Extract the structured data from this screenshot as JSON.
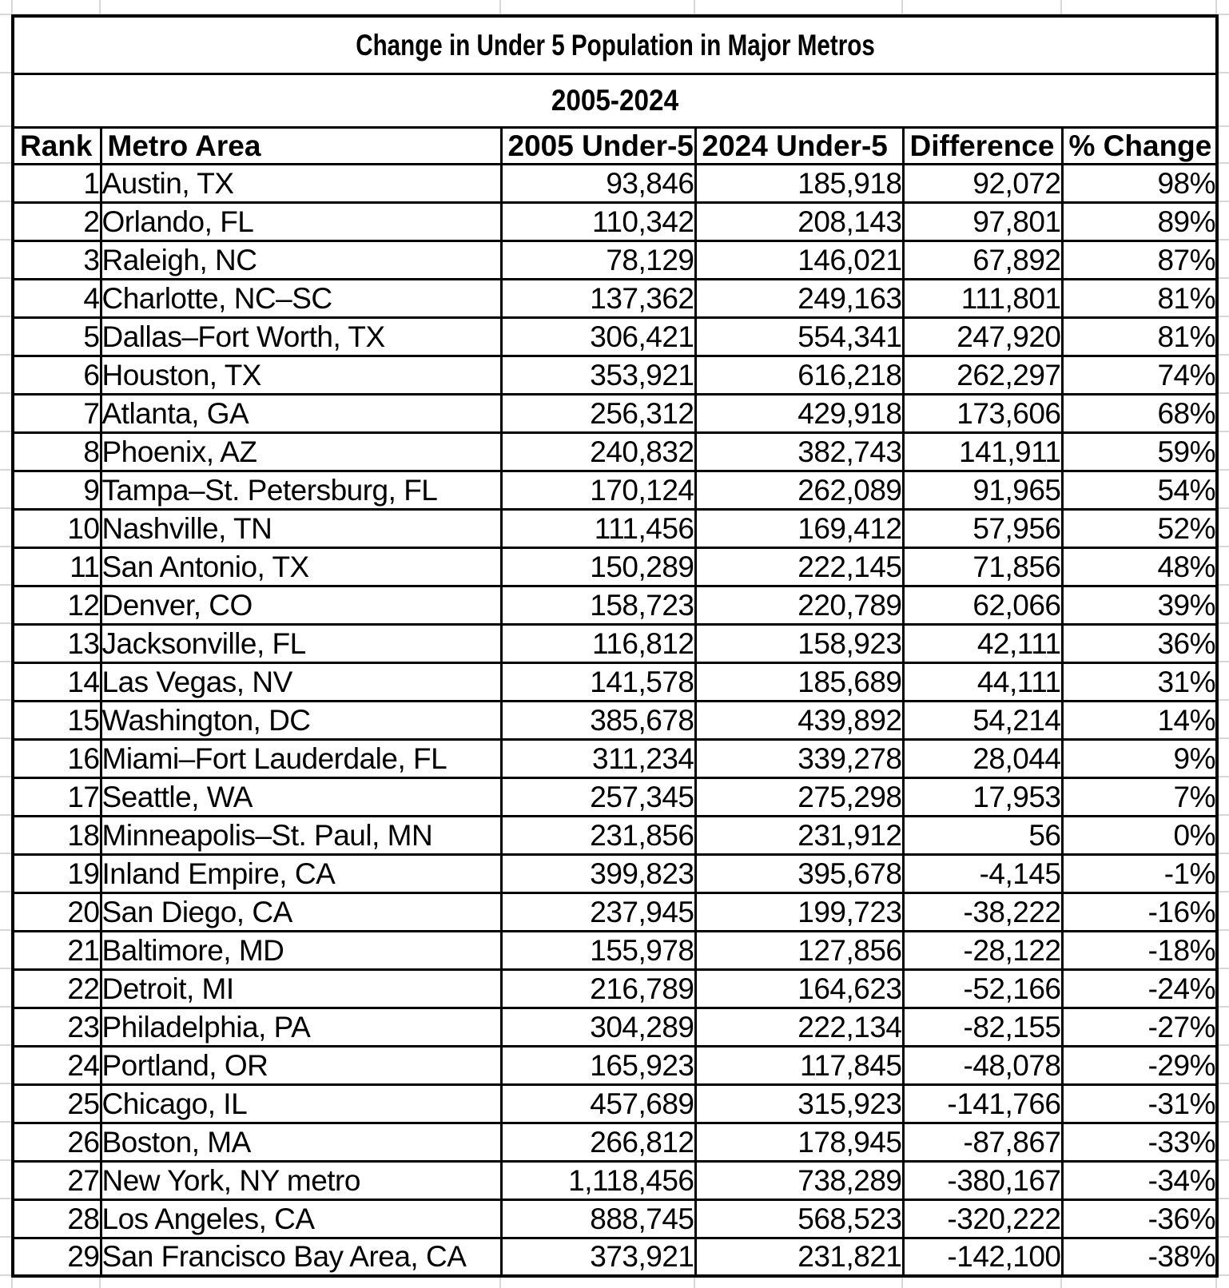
{
  "title": "Change in Under 5 Population in Major Metros",
  "subtitle": "2005-2024",
  "columns": [
    "Rank",
    "Metro Area",
    "2005 Under-5",
    "2024 Under-5",
    "Difference",
    "% Change"
  ],
  "rows": [
    [
      "1",
      "Austin, TX",
      "93,846",
      "185,918",
      "92,072",
      "98%"
    ],
    [
      "2",
      "Orlando, FL",
      "110,342",
      "208,143",
      "97,801",
      "89%"
    ],
    [
      "3",
      "Raleigh, NC",
      "78,129",
      "146,021",
      "67,892",
      "87%"
    ],
    [
      "4",
      "Charlotte, NC–SC",
      "137,362",
      "249,163",
      "111,801",
      "81%"
    ],
    [
      "5",
      "Dallas–Fort Worth, TX",
      "306,421",
      "554,341",
      "247,920",
      "81%"
    ],
    [
      "6",
      "Houston, TX",
      "353,921",
      "616,218",
      "262,297",
      "74%"
    ],
    [
      "7",
      "Atlanta, GA",
      "256,312",
      "429,918",
      "173,606",
      "68%"
    ],
    [
      "8",
      "Phoenix, AZ",
      "240,832",
      "382,743",
      "141,911",
      "59%"
    ],
    [
      "9",
      "Tampa–St. Petersburg, FL",
      "170,124",
      "262,089",
      "91,965",
      "54%"
    ],
    [
      "10",
      "Nashville, TN",
      "111,456",
      "169,412",
      "57,956",
      "52%"
    ],
    [
      "11",
      "San Antonio, TX",
      "150,289",
      "222,145",
      "71,856",
      "48%"
    ],
    [
      "12",
      "Denver, CO",
      "158,723",
      "220,789",
      "62,066",
      "39%"
    ],
    [
      "13",
      "Jacksonville, FL",
      "116,812",
      "158,923",
      "42,111",
      "36%"
    ],
    [
      "14",
      "Las Vegas, NV",
      "141,578",
      "185,689",
      "44,111",
      "31%"
    ],
    [
      "15",
      "Washington, DC",
      "385,678",
      "439,892",
      "54,214",
      "14%"
    ],
    [
      "16",
      "Miami–Fort Lauderdale, FL",
      "311,234",
      "339,278",
      "28,044",
      "9%"
    ],
    [
      "17",
      "Seattle, WA",
      "257,345",
      "275,298",
      "17,953",
      "7%"
    ],
    [
      "18",
      "Minneapolis–St. Paul, MN",
      "231,856",
      "231,912",
      "56",
      "0%"
    ],
    [
      "19",
      "Inland Empire, CA",
      "399,823",
      "395,678",
      "-4,145",
      "-1%"
    ],
    [
      "20",
      "San Diego, CA",
      "237,945",
      "199,723",
      "-38,222",
      "-16%"
    ],
    [
      "21",
      "Baltimore, MD",
      "155,978",
      "127,856",
      "-28,122",
      "-18%"
    ],
    [
      "22",
      "Detroit, MI",
      "216,789",
      "164,623",
      "-52,166",
      "-24%"
    ],
    [
      "23",
      "Philadelphia, PA",
      "304,289",
      "222,134",
      "-82,155",
      "-27%"
    ],
    [
      "24",
      "Portland, OR",
      "165,923",
      "117,845",
      "-48,078",
      "-29%"
    ],
    [
      "25",
      "Chicago, IL",
      "457,689",
      "315,923",
      "-141,766",
      "-31%"
    ],
    [
      "26",
      "Boston, MA",
      "266,812",
      "178,945",
      "-87,867",
      "-33%"
    ],
    [
      "27",
      "New York, NY metro",
      "1,118,456",
      "738,289",
      "-380,167",
      "-34%"
    ],
    [
      "28",
      "Los Angeles, CA",
      "888,745",
      "568,523",
      "-320,222",
      "-36%"
    ],
    [
      "29",
      "San Francisco Bay Area, CA",
      "373,921",
      "231,821",
      "-142,100",
      "-38%"
    ]
  ],
  "colors": {
    "text": "#000000",
    "table_border": "#000000",
    "background": "#ffffff",
    "spreadsheet_gridline": "#d8d8d8"
  }
}
